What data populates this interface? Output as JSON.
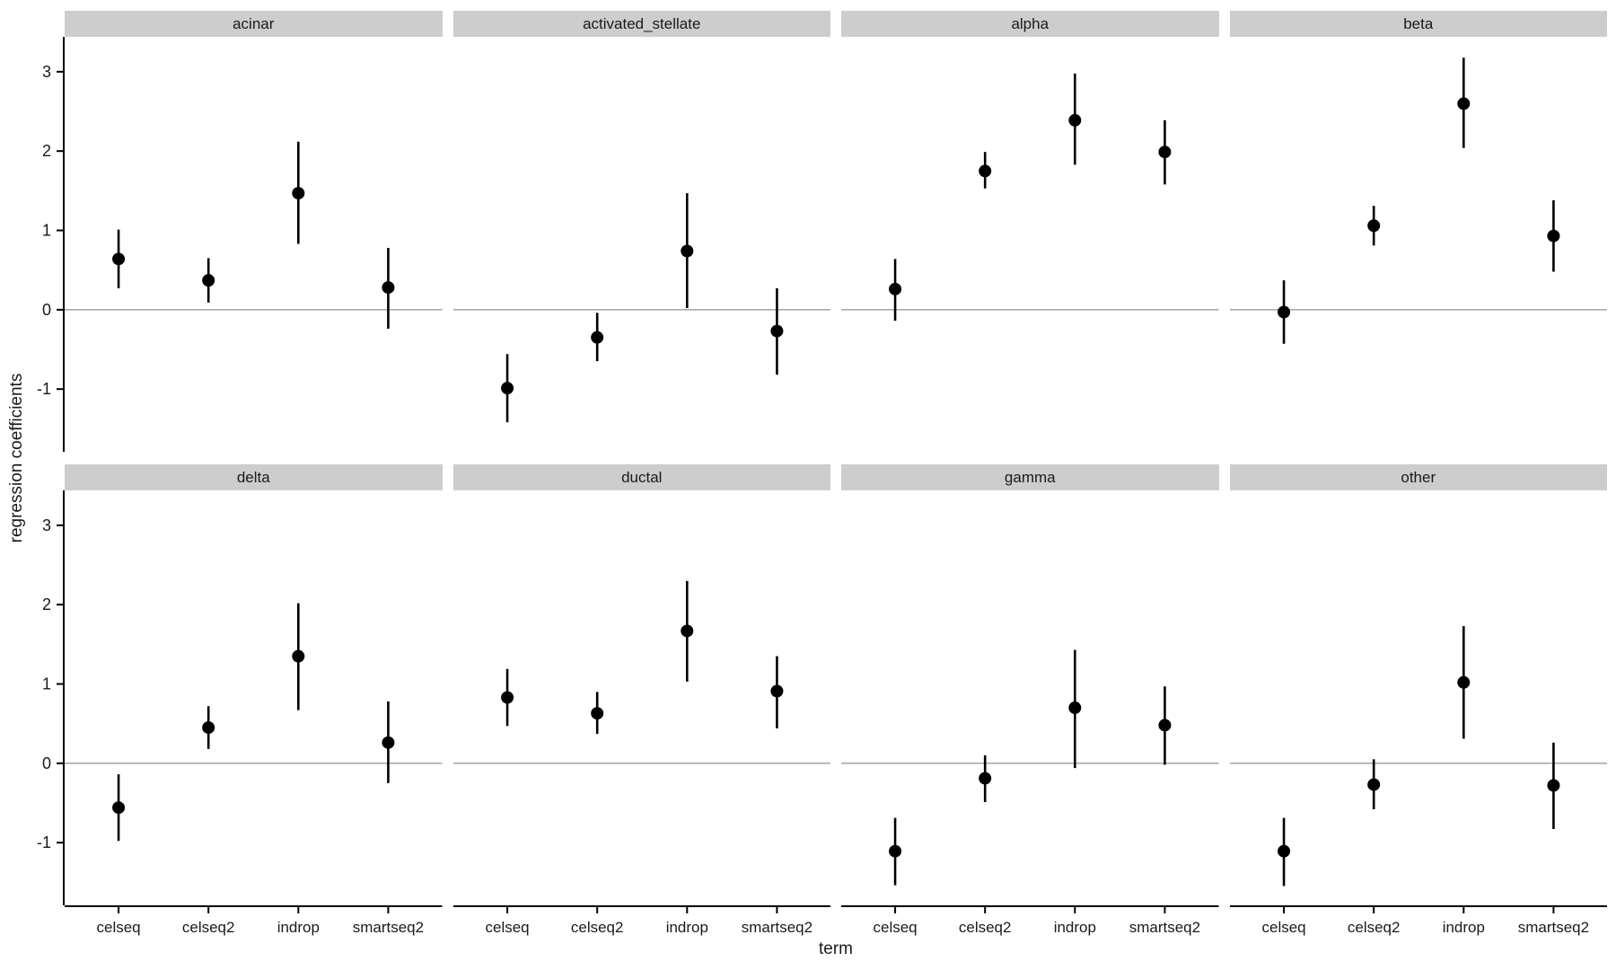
{
  "figure": {
    "background": "#ffffff",
    "colors": {
      "strip_bg": "#cdcdcd",
      "strip_text": "#1a1a1a",
      "axis_line": "#000000",
      "tick_label": "#1a1a1a",
      "zero_line": "#aaaaaa",
      "point": "#000000"
    }
  },
  "chart_data": {
    "type": "scatter",
    "subtype": "pointrange-faceted",
    "title": "",
    "xlabel": "term",
    "ylabel": "regression coefficients",
    "categories": [
      "celseq",
      "celseq2",
      "indrop",
      "smartseq2"
    ],
    "yticks": [
      -1,
      0,
      1,
      2,
      3
    ],
    "ylim": [
      -1.79,
      3.44
    ],
    "grid": false,
    "zero_line_y": 0,
    "legend": "none",
    "facet_layout": {
      "rows": 2,
      "cols": 4
    },
    "facets": [
      {
        "label": "acinar",
        "estimates": [
          0.64,
          0.37,
          1.47,
          0.28
        ],
        "ci_low": [
          0.27,
          0.09,
          0.83,
          -0.24
        ],
        "ci_high": [
          1.01,
          0.65,
          2.12,
          0.78
        ]
      },
      {
        "label": "activated_stellate",
        "estimates": [
          -0.99,
          -0.35,
          0.74,
          -0.27
        ],
        "ci_low": [
          -1.42,
          -0.65,
          0.02,
          -0.82
        ],
        "ci_high": [
          -0.56,
          -0.04,
          1.47,
          0.27
        ]
      },
      {
        "label": "alpha",
        "estimates": [
          0.26,
          1.75,
          2.39,
          1.99
        ],
        "ci_low": [
          -0.14,
          1.53,
          1.83,
          1.58
        ],
        "ci_high": [
          0.64,
          1.99,
          2.98,
          2.39
        ]
      },
      {
        "label": "beta",
        "estimates": [
          -0.03,
          1.06,
          2.6,
          0.93
        ],
        "ci_low": [
          -0.43,
          0.81,
          2.04,
          0.48
        ],
        "ci_high": [
          0.37,
          1.31,
          3.18,
          1.38
        ]
      },
      {
        "label": "delta",
        "estimates": [
          -0.56,
          0.45,
          1.35,
          0.26
        ],
        "ci_low": [
          -0.98,
          0.18,
          0.67,
          -0.25
        ],
        "ci_high": [
          -0.14,
          0.72,
          2.02,
          0.78
        ]
      },
      {
        "label": "ductal",
        "estimates": [
          0.83,
          0.63,
          1.67,
          0.91
        ],
        "ci_low": [
          0.47,
          0.37,
          1.03,
          0.44
        ],
        "ci_high": [
          1.19,
          0.9,
          2.3,
          1.35
        ]
      },
      {
        "label": "gamma",
        "estimates": [
          -1.11,
          -0.19,
          0.7,
          0.48
        ],
        "ci_low": [
          -1.54,
          -0.49,
          -0.06,
          -0.02
        ],
        "ci_high": [
          -0.69,
          0.1,
          1.43,
          0.97
        ]
      },
      {
        "label": "other",
        "estimates": [
          -1.11,
          -0.27,
          1.02,
          -0.28
        ],
        "ci_low": [
          -1.55,
          -0.58,
          0.31,
          -0.83
        ],
        "ci_high": [
          -0.69,
          0.05,
          1.73,
          0.26
        ]
      }
    ]
  }
}
